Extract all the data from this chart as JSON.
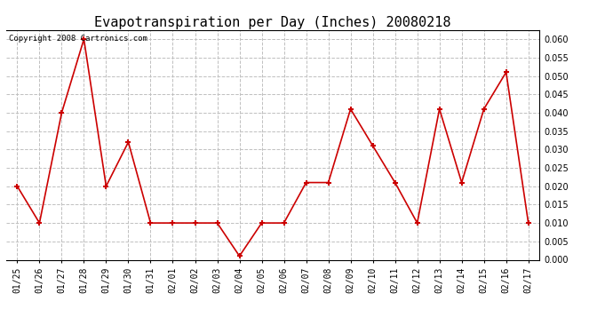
{
  "title": "Evapotranspiration per Day (Inches) 20080218",
  "copyright_text": "Copyright 2008 Cartronics.com",
  "dates": [
    "01/25",
    "01/26",
    "01/27",
    "01/28",
    "01/29",
    "01/30",
    "01/31",
    "02/01",
    "02/02",
    "02/03",
    "02/04",
    "02/05",
    "02/06",
    "02/07",
    "02/08",
    "02/09",
    "02/10",
    "02/11",
    "02/12",
    "02/13",
    "02/14",
    "02/15",
    "02/16",
    "02/17"
  ],
  "values": [
    0.02,
    0.01,
    0.04,
    0.06,
    0.02,
    0.032,
    0.01,
    0.01,
    0.01,
    0.01,
    0.001,
    0.01,
    0.01,
    0.021,
    0.021,
    0.041,
    0.031,
    0.021,
    0.01,
    0.041,
    0.021,
    0.041,
    0.051,
    0.01
  ],
  "ylim": [
    0.0,
    0.0625
  ],
  "yticks": [
    0.0,
    0.005,
    0.01,
    0.015,
    0.02,
    0.025,
    0.03,
    0.035,
    0.04,
    0.045,
    0.05,
    0.055,
    0.06
  ],
  "line_color": "#cc0000",
  "marker_color": "#cc0000",
  "bg_color": "#ffffff",
  "grid_color": "#c0c0c0",
  "title_fontsize": 11,
  "copyright_fontsize": 6.5,
  "tick_fontsize": 7
}
